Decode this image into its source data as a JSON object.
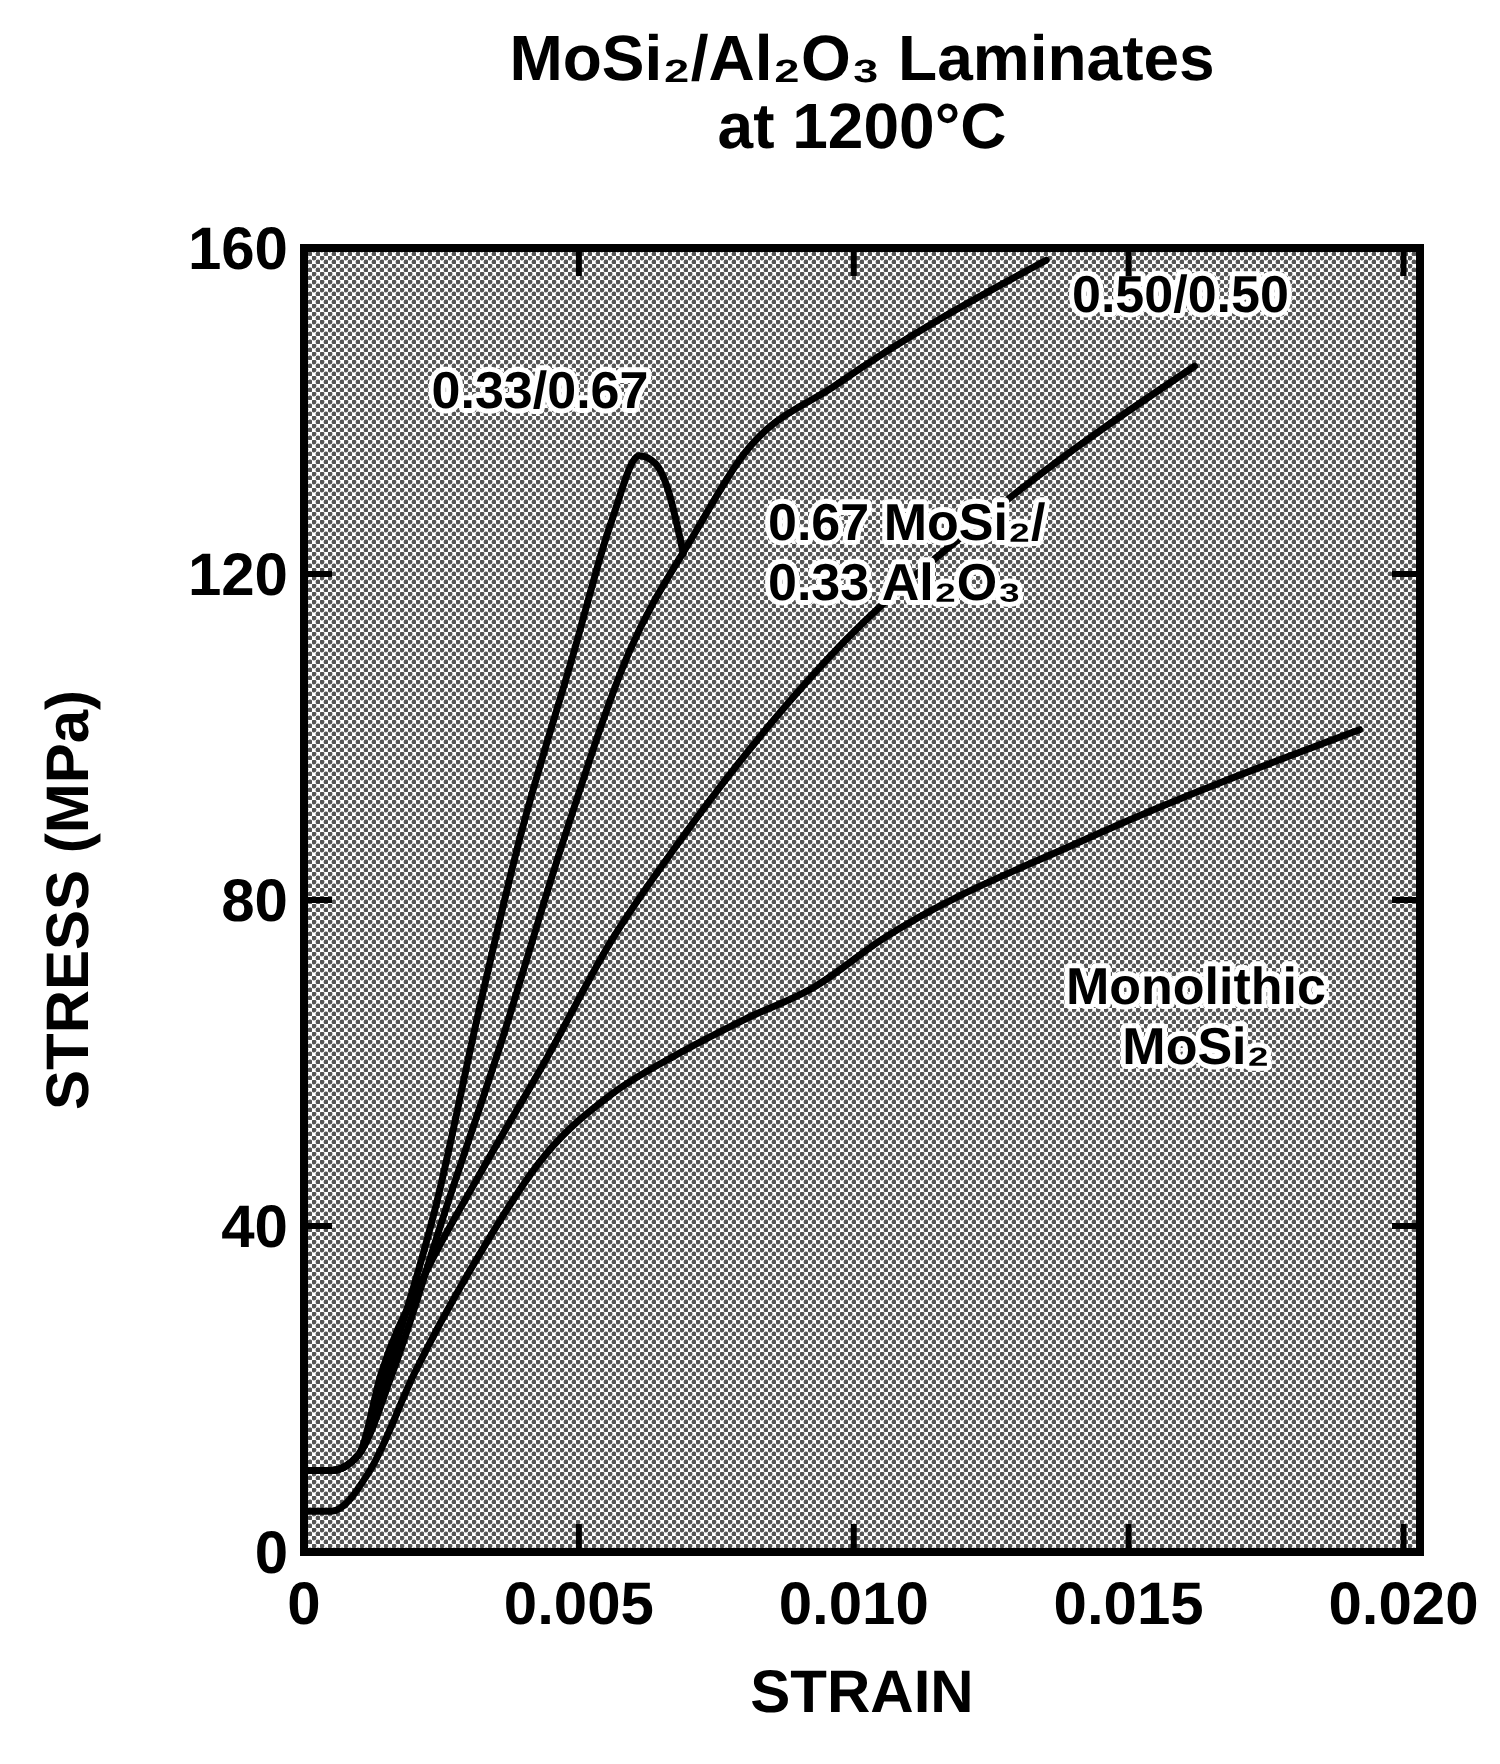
{
  "chart_data": {
    "type": "line",
    "title": "MoSi₂/Al₂O₃ Laminates at 1200°C",
    "xlabel": "STRAIN",
    "ylabel": "STRESS (MPa)",
    "xlim": [
      0,
      0.0203
    ],
    "ylim": [
      0,
      160
    ],
    "xticks": [
      0,
      0.005,
      {
        "value": 0.01,
        "label": "0.010"
      },
      0.015,
      {
        "value": 0.02,
        "label": "0.020"
      }
    ],
    "yticks": [
      0,
      40,
      80,
      120,
      160
    ],
    "grid": false,
    "marker": "none",
    "line_style": "solid",
    "series": [
      {
        "name": "0.33/0.67",
        "color": "#000000",
        "x": [
          0,
          0.0005,
          0.001,
          0.0015,
          0.0024,
          0.0032,
          0.0039,
          0.0049,
          0.0056,
          0.0061,
          0.0064,
          0.0066,
          0.0069
        ],
        "values": [
          10,
          10,
          12,
          21.8,
          42.5,
          67,
          86.9,
          110.2,
          126.6,
          134.5,
          133.5,
          130.8,
          122.5
        ]
      },
      {
        "name": "0.50/0.50",
        "color": "#000000",
        "x": [
          0,
          0.0005,
          0.001,
          0.0016,
          0.0026,
          0.0036,
          0.0047,
          0.0059,
          0.0071,
          0.008,
          0.0097,
          0.0135
        ],
        "values": [
          10,
          10,
          12,
          21.8,
          42.5,
          62.8,
          86.9,
          110.2,
          124.9,
          134.7,
          143.3,
          158.5
        ]
      },
      {
        "name": "0.67 MoSi₂/ 0.33 Al₂O₃",
        "color": "#000000",
        "x": [
          0,
          0.0005,
          0.001,
          0.0014,
          0.0022,
          0.0032,
          0.0044,
          0.0056,
          0.0068,
          0.0095,
          0.0127,
          0.0162
        ],
        "values": [
          10,
          10,
          12,
          21.8,
          34.1,
          46.4,
          60.4,
          75.1,
          86.9,
          109.4,
          128.6,
          145.5
        ]
      },
      {
        "name": "Monolithic MoSi₂",
        "color": "#000000",
        "x": [
          0,
          0.0005,
          0.0012,
          0.002,
          0.0032,
          0.0044,
          0.0056,
          0.0068,
          0.008,
          0.0093,
          0.0105,
          0.0142,
          0.0192
        ],
        "values": [
          5,
          5,
          10,
          21.8,
          36.6,
          48.8,
          56.2,
          61.1,
          65.3,
          69.4,
          75.1,
          87.4,
          100.9
        ]
      }
    ]
  }
}
